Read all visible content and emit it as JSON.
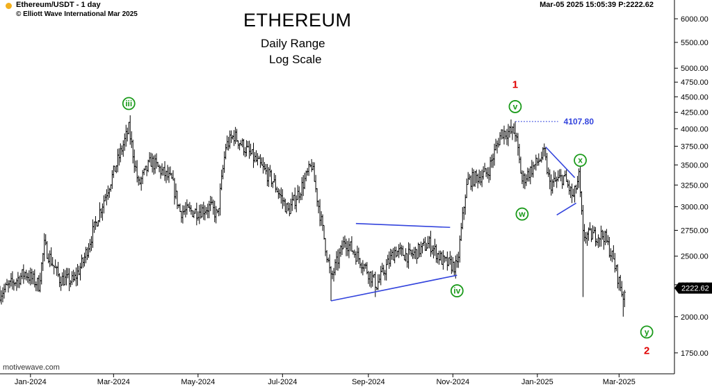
{
  "header": {
    "symbol": "Ethereum/USDT - 1 day",
    "copyright": "© Elliott Wave International Mar 2025",
    "timestamp": "Mar-05 2025  15:05:39  P:2222.62",
    "title": "ETHEREUM",
    "subtitle1": "Daily Range",
    "subtitle2": "Log Scale",
    "watermark": "motivewave.com"
  },
  "colors": {
    "bars": "#000000",
    "trendlines": "#3344dd",
    "wave_labels": "#1a9a1a",
    "primary_labels": "#e00000",
    "price_tag_bg": "#000000"
  },
  "chart_data": {
    "type": "ohlc",
    "scale": "log",
    "grid": false,
    "x_ticks": [
      "Jan-2024",
      "Mar-2024",
      "May-2024",
      "Jul-2024",
      "Sep-2024",
      "Nov-2024",
      "Jan-2025",
      "Mar-2025"
    ],
    "y_ticks": [
      1750,
      2000,
      2250,
      2500,
      2750,
      3000,
      3250,
      3500,
      3750,
      4000,
      4250,
      4500,
      4750,
      5000,
      5500,
      6000
    ],
    "y_tick_labels": [
      "1750.00",
      "2000.00",
      "2250.00",
      "2500.00",
      "2750.00",
      "3000.00",
      "3250.00",
      "3500.00",
      "3750.00",
      "4000.00",
      "4250.00",
      "4500.00",
      "4750.00",
      "5000.00",
      "5500.00",
      "6000.00"
    ],
    "ylim": [
      1620,
      6300
    ],
    "xlim": [
      "2023-12-10",
      "2025-04-10"
    ],
    "last_price": "2222.62",
    "price_path": [
      [
        "2023-12-10",
        2180
      ],
      [
        "2023-12-28",
        2350
      ],
      [
        "2024-01-07",
        2250
      ],
      [
        "2024-01-11",
        2600
      ],
      [
        "2024-01-22",
        2300
      ],
      [
        "2024-02-01",
        2280
      ],
      [
        "2024-02-08",
        2450
      ],
      [
        "2024-02-20",
        2950
      ],
      [
        "2024-03-01",
        3400
      ],
      [
        "2024-03-12",
        4000
      ],
      [
        "2024-03-19",
        3250
      ],
      [
        "2024-03-28",
        3550
      ],
      [
        "2024-04-12",
        3300
      ],
      [
        "2024-04-18",
        2950
      ],
      [
        "2024-05-01",
        2950
      ],
      [
        "2024-05-10",
        3000
      ],
      [
        "2024-05-15",
        2900
      ],
      [
        "2024-05-21",
        3750
      ],
      [
        "2024-05-27",
        3900
      ],
      [
        "2024-06-12",
        3550
      ],
      [
        "2024-06-24",
        3300
      ],
      [
        "2024-07-05",
        2950
      ],
      [
        "2024-07-14",
        3200
      ],
      [
        "2024-07-22",
        3500
      ],
      [
        "2024-08-05",
        2300
      ],
      [
        "2024-08-15",
        2650
      ],
      [
        "2024-08-27",
        2450
      ],
      [
        "2024-09-07",
        2250
      ],
      [
        "2024-09-20",
        2550
      ],
      [
        "2024-10-01",
        2500
      ],
      [
        "2024-10-15",
        2620
      ],
      [
        "2024-10-25",
        2450
      ],
      [
        "2024-11-04",
        2400
      ],
      [
        "2024-11-10",
        3150
      ],
      [
        "2024-11-12",
        3300
      ],
      [
        "2024-11-26",
        3400
      ],
      [
        "2024-12-06",
        3950
      ],
      [
        "2024-12-16",
        3950
      ],
      [
        "2024-12-21",
        3300
      ],
      [
        "2025-01-06",
        3650
      ],
      [
        "2025-01-10",
        3250
      ],
      [
        "2025-01-20",
        3350
      ],
      [
        "2025-01-27",
        3100
      ],
      [
        "2025-01-31",
        3350
      ],
      [
        "2025-02-03",
        2700
      ],
      [
        "2025-02-18",
        2700
      ],
      [
        "2025-02-24",
        2500
      ],
      [
        "2025-03-04",
        2150
      ],
      [
        "2025-03-05",
        2222
      ]
    ],
    "extremes": [
      [
        "2024-03-12",
        4100
      ],
      [
        "2024-05-27",
        3980
      ],
      [
        "2024-08-05",
        2120
      ],
      [
        "2024-09-06",
        2150
      ],
      [
        "2024-12-16",
        4107.8
      ],
      [
        "2025-01-07",
        3740
      ],
      [
        "2025-02-03",
        2150
      ],
      [
        "2025-03-04",
        2000
      ]
    ],
    "wave_labels": [
      {
        "text": "iii",
        "date": "2024-03-12",
        "price": 4390
      },
      {
        "text": "iv",
        "date": "2024-11-04",
        "price": 2200
      },
      {
        "text": "v",
        "date": "2024-12-16",
        "price": 4340
      },
      {
        "text": "w",
        "date": "2024-12-21",
        "price": 2920
      },
      {
        "text": "x",
        "date": "2025-02-01",
        "price": 3560
      },
      {
        "text": "y",
        "date": "2025-03-21",
        "price": 1890
      }
    ],
    "primary_labels": [
      {
        "text": "1",
        "date": "2024-12-16",
        "price": 4710
      },
      {
        "text": "2",
        "date": "2025-03-21",
        "price": 1765
      }
    ],
    "annotation": {
      "text": "4107.80",
      "price": 4107.8,
      "from": "2024-12-16",
      "to": "2025-01-16",
      "label_date": "2025-01-20"
    },
    "trendlines": [
      {
        "from": [
          "2024-08-05",
          2120
        ],
        "to": [
          "2024-11-04",
          2330
        ]
      },
      {
        "from": [
          "2024-08-23",
          2820
        ],
        "to": [
          "2024-10-30",
          2780
        ]
      },
      {
        "from": [
          "2025-01-07",
          3740
        ],
        "to": [
          "2025-01-28",
          3340
        ]
      },
      {
        "from": [
          "2025-01-15",
          2910
        ],
        "to": [
          "2025-01-29",
          3040
        ]
      }
    ]
  }
}
